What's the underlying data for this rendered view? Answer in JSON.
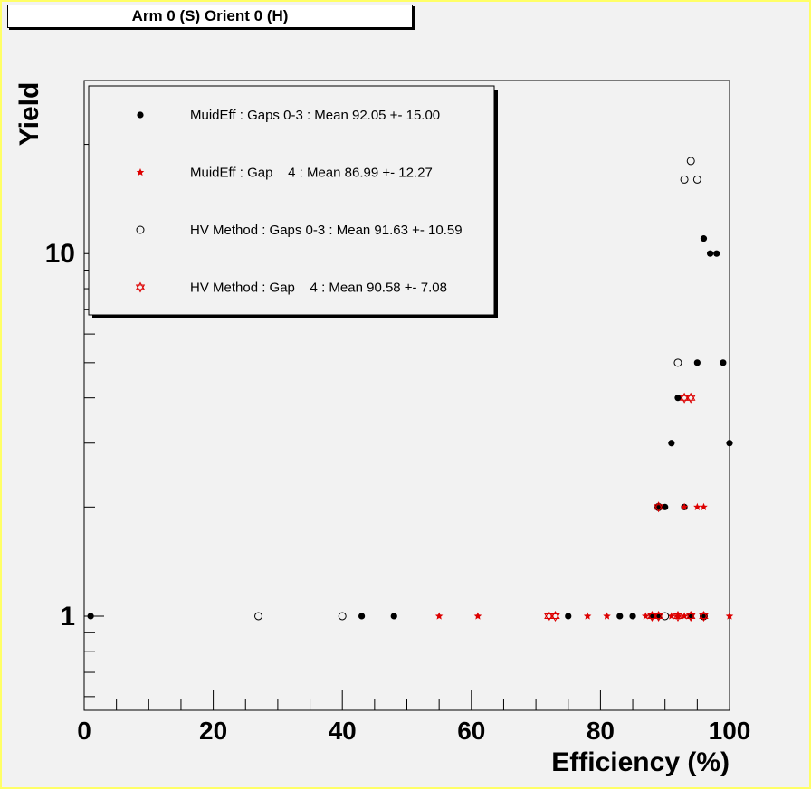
{
  "title": "Arm 0 (S) Orient 0 (H)",
  "chart_data": {
    "type": "scatter",
    "xlabel": "Efficiency (%)",
    "ylabel": "Yield",
    "xlim": [
      0,
      100
    ],
    "ylim": [
      0.55,
      30
    ],
    "y_scale": "log",
    "x_ticks": [
      "0",
      "20",
      "40",
      "60",
      "80",
      "100"
    ],
    "y_ticks": [
      "1",
      "10"
    ],
    "legend_position": "top-left",
    "series": [
      {
        "name": "MuidEff : Gaps 0-3 : Mean 92.05 +- 15.00",
        "marker": "filled-circle",
        "color": "#000000",
        "points": [
          [
            1,
            1
          ],
          [
            43,
            1
          ],
          [
            48,
            1
          ],
          [
            75,
            1
          ],
          [
            83,
            1
          ],
          [
            85,
            1
          ],
          [
            88,
            1
          ],
          [
            89,
            1
          ],
          [
            94,
            1
          ],
          [
            96,
            1
          ],
          [
            89,
            2
          ],
          [
            90,
            2
          ],
          [
            93,
            2
          ],
          [
            91,
            3
          ],
          [
            92,
            4
          ],
          [
            95,
            5
          ],
          [
            99,
            5
          ],
          [
            96,
            11
          ],
          [
            97,
            10
          ],
          [
            98,
            10
          ],
          [
            100,
            3
          ]
        ]
      },
      {
        "name": "MuidEff : Gap    4 : Mean 86.99 +- 12.27",
        "marker": "red-star",
        "color": "#dd0000",
        "points": [
          [
            55,
            1
          ],
          [
            61,
            1
          ],
          [
            78,
            1
          ],
          [
            81,
            1
          ],
          [
            87,
            1
          ],
          [
            91,
            1
          ],
          [
            92,
            1
          ],
          [
            93,
            1
          ],
          [
            100,
            1
          ],
          [
            93,
            2
          ],
          [
            95,
            2
          ],
          [
            96,
            2
          ]
        ]
      },
      {
        "name": "HV Method : Gaps 0-3 : Mean 91.63 +- 10.59",
        "marker": "open-circle",
        "color": "#000000",
        "points": [
          [
            27,
            1
          ],
          [
            40,
            1
          ],
          [
            90,
            1
          ],
          [
            96,
            1
          ],
          [
            89,
            2
          ],
          [
            92,
            5
          ],
          [
            93,
            16
          ],
          [
            94,
            18
          ],
          [
            95,
            16
          ]
        ]
      },
      {
        "name": "HV Method : Gap    4 : Mean 90.58 +- 7.08",
        "marker": "open-red-star",
        "color": "#dd0000",
        "points": [
          [
            72,
            1
          ],
          [
            73,
            1
          ],
          [
            88,
            1
          ],
          [
            89,
            1
          ],
          [
            92,
            1
          ],
          [
            94,
            1
          ],
          [
            96,
            1
          ],
          [
            89,
            2
          ],
          [
            93,
            4
          ],
          [
            94,
            4
          ]
        ]
      }
    ]
  }
}
